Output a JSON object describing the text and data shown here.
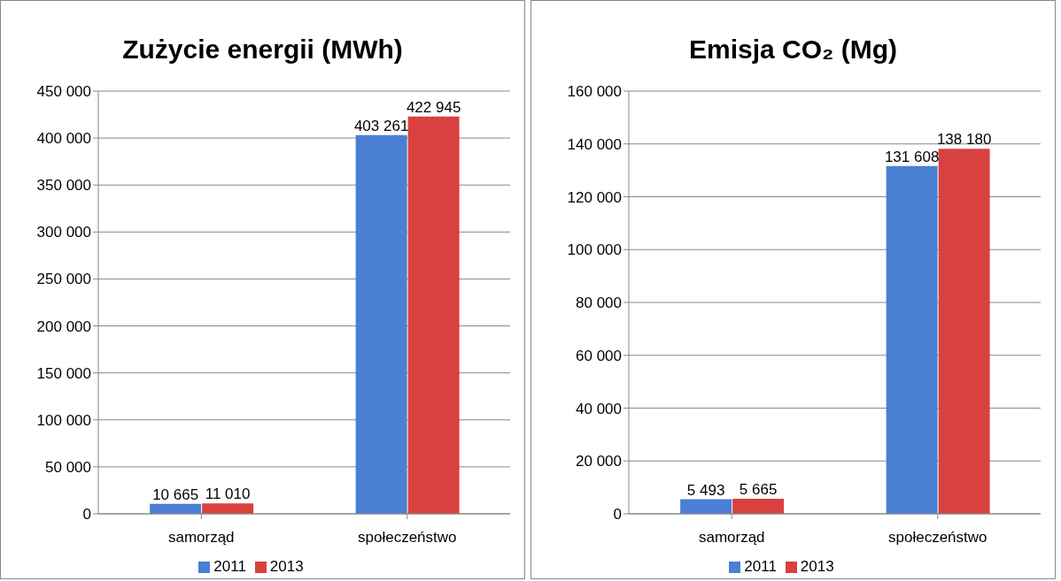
{
  "chart_data": [
    {
      "type": "bar",
      "title": "Zużycie energii (MWh)",
      "categories": [
        "samorząd",
        "społeczeństwo"
      ],
      "series": [
        {
          "name": "2011",
          "color": "#4a7fd4",
          "values": [
            10665,
            403261
          ],
          "value_labels": [
            "10 665",
            "403 261"
          ]
        },
        {
          "name": "2013",
          "color": "#d9413e",
          "values": [
            11010,
            422945
          ],
          "value_labels": [
            "11 010",
            "422 945"
          ]
        }
      ],
      "ylim": [
        0,
        450000
      ],
      "yticks": [
        0,
        {
          "value": 50000,
          "label": "50 000"
        },
        {
          "value": 100000,
          "label": "100 000"
        },
        {
          "value": 150000,
          "label": "150 000"
        },
        {
          "value": 200000,
          "label": "200 000"
        },
        {
          "value": 250000,
          "label": "250 000"
        },
        {
          "value": 300000,
          "label": "300 000"
        },
        {
          "value": 350000,
          "label": "350 000"
        },
        {
          "value": 400000,
          "label": "400 000"
        },
        {
          "value": 450000,
          "label": "450 000"
        }
      ],
      "grid": "y",
      "legend": "bottom"
    },
    {
      "type": "bar",
      "title": "Emisja CO₂ (Mg)",
      "categories": [
        "samorząd",
        "społeczeństwo"
      ],
      "series": [
        {
          "name": "2011",
          "color": "#4a7fd4",
          "values": [
            5493,
            131608
          ],
          "value_labels": [
            "5 493",
            "131 608"
          ]
        },
        {
          "name": "2013",
          "color": "#d9413e",
          "values": [
            5665,
            138180
          ],
          "value_labels": [
            "5 665",
            "138 180"
          ]
        }
      ],
      "ylim": [
        0,
        160000
      ],
      "yticks": [
        0,
        {
          "value": 20000,
          "label": "20 000"
        },
        {
          "value": 40000,
          "label": "40 000"
        },
        {
          "value": 60000,
          "label": "60 000"
        },
        {
          "value": 80000,
          "label": "80 000"
        },
        {
          "value": 100000,
          "label": "100 000"
        },
        {
          "value": 120000,
          "label": "120 000"
        },
        {
          "value": 140000,
          "label": "140 000"
        },
        {
          "value": 160000,
          "label": "160 000"
        }
      ],
      "grid": "y",
      "legend": "bottom"
    }
  ]
}
